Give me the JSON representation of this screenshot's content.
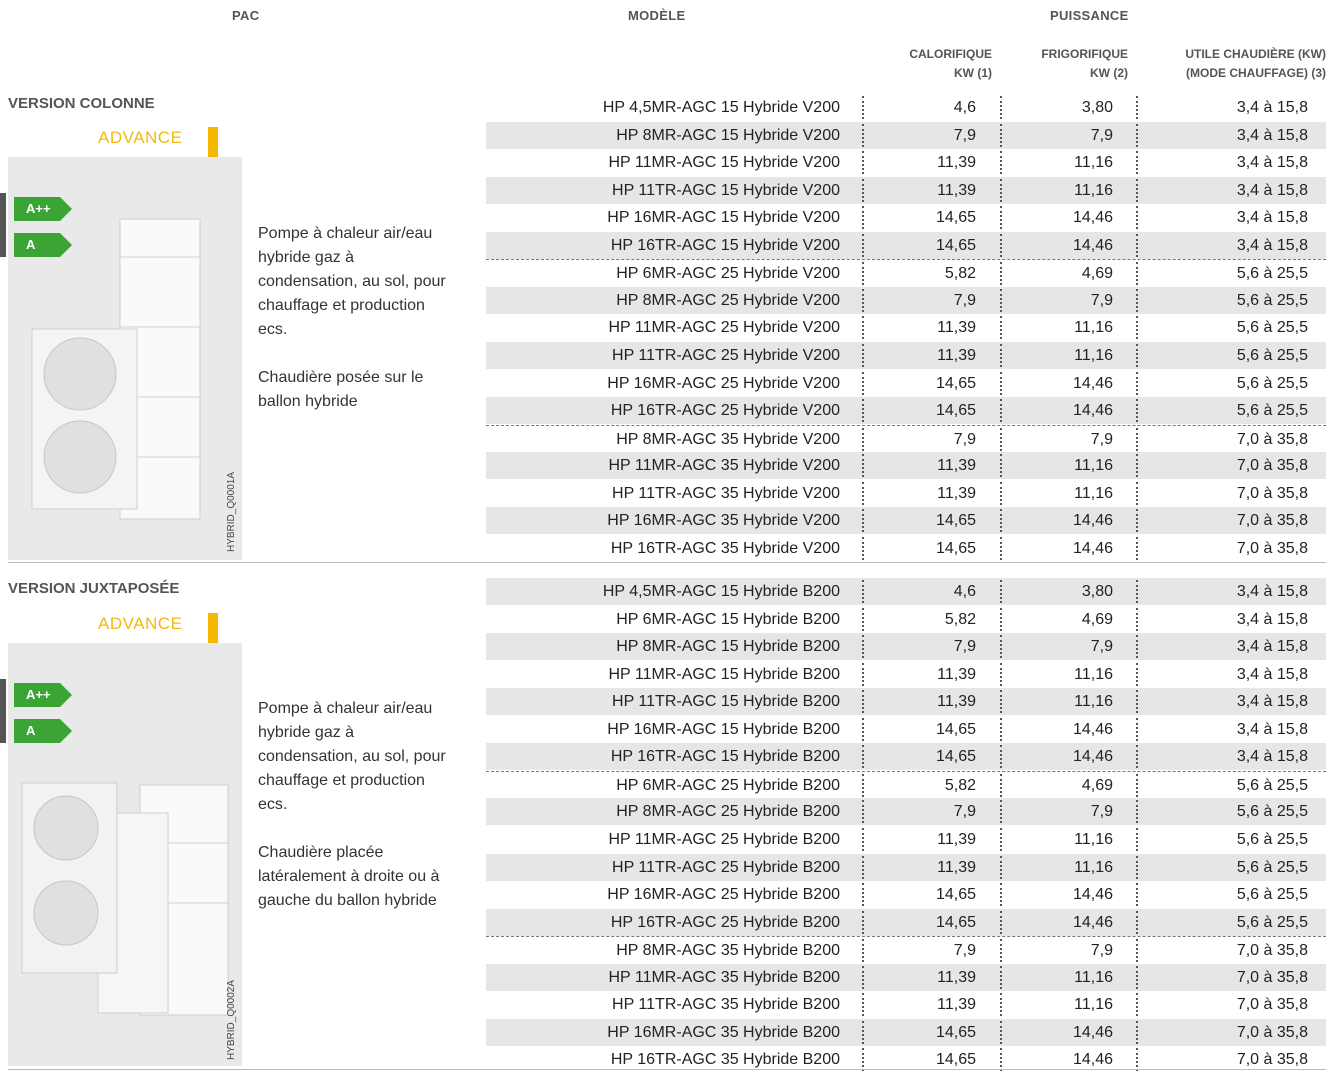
{
  "headers": {
    "pac": "PAC",
    "modele": "MODÈLE",
    "puissance": "PUISSANCE",
    "calorifique_l1": "CALORIFIQUE",
    "calorifique_l2": "KW (1)",
    "frigorifique_l1": "FRIGORIFIQUE",
    "frigorifique_l2": "KW (2)",
    "utile_l1": "UTILE CHAUDIÈRE (KW)",
    "utile_l2": "(MODE CHAUFFAGE) (3)"
  },
  "sections": [
    {
      "title": "VERSION COLONNE",
      "badge": "ADVANCE",
      "energy_classes": [
        "A++",
        "A"
      ],
      "photo_code": "HYBRID_Q0001A",
      "desc_1": "Pompe à chaleur air/eau hybride gaz à condensation, au sol, pour chauffage et production ecs.",
      "desc_2": "Chaudière posée sur le ballon hybride",
      "rows": [
        {
          "model": "HP 4,5MR-AGC 15 Hybride V200",
          "cal": "4,6",
          "frig": "3,80",
          "util": "3,4 à 15,8"
        },
        {
          "model": "HP 8MR-AGC 15 Hybride V200",
          "cal": "7,9",
          "frig": "7,9",
          "util": "3,4 à 15,8"
        },
        {
          "model": "HP 11MR-AGC 15 Hybride V200",
          "cal": "11,39",
          "frig": "11,16",
          "util": "3,4 à 15,8"
        },
        {
          "model": "HP 11TR-AGC 15 Hybride V200",
          "cal": "11,39",
          "frig": "11,16",
          "util": "3,4 à 15,8"
        },
        {
          "model": "HP 16MR-AGC 15 Hybride V200",
          "cal": "14,65",
          "frig": "14,46",
          "util": "3,4 à 15,8"
        },
        {
          "model": "HP 16TR-AGC 15 Hybride V200",
          "cal": "14,65",
          "frig": "14,46",
          "util": "3,4 à 15,8"
        },
        {
          "model": "HP 6MR-AGC 25 Hybride V200",
          "cal": "5,82",
          "frig": "4,69",
          "util": "5,6 à 25,5"
        },
        {
          "model": "HP 8MR-AGC 25 Hybride V200",
          "cal": "7,9",
          "frig": "7,9",
          "util": "5,6 à 25,5"
        },
        {
          "model": "HP 11MR-AGC 25 Hybride V200",
          "cal": "11,39",
          "frig": "11,16",
          "util": "5,6 à 25,5"
        },
        {
          "model": "HP 11TR-AGC 25 Hybride V200",
          "cal": "11,39",
          "frig": "11,16",
          "util": "5,6 à 25,5"
        },
        {
          "model": "HP 16MR-AGC 25 Hybride V200",
          "cal": "14,65",
          "frig": "14,46",
          "util": "5,6 à 25,5"
        },
        {
          "model": "HP 16TR-AGC 25 Hybride V200",
          "cal": "14,65",
          "frig": "14,46",
          "util": "5,6 à 25,5"
        },
        {
          "model": "HP 8MR-AGC 35 Hybride V200",
          "cal": "7,9",
          "frig": "7,9",
          "util": "7,0 à 35,8"
        },
        {
          "model": "HP 11MR-AGC 35 Hybride V200",
          "cal": "11,39",
          "frig": "11,16",
          "util": "7,0 à 35,8"
        },
        {
          "model": "HP 11TR-AGC 35 Hybride V200",
          "cal": "11,39",
          "frig": "11,16",
          "util": "7,0 à 35,8"
        },
        {
          "model": "HP 16MR-AGC 35 Hybride V200",
          "cal": "14,65",
          "frig": "14,46",
          "util": "7,0 à 35,8"
        },
        {
          "model": "HP 16TR-AGC 35 Hybride V200",
          "cal": "14,65",
          "frig": "14,46",
          "util": "7,0 à 35,8"
        }
      ]
    },
    {
      "title": "VERSION JUXTAPOSÉE",
      "badge": "ADVANCE",
      "energy_classes": [
        "A++",
        "A"
      ],
      "photo_code": "HYBRID_Q0002A",
      "desc_1": "Pompe à chaleur air/eau hybride gaz à condensation, au sol, pour chauffage et production ecs.",
      "desc_2": "Chaudière placée latéralement à droite ou à gauche du ballon hybride",
      "rows": [
        {
          "model": "HP 4,5MR-AGC 15 Hybride B200",
          "cal": "4,6",
          "frig": "3,80",
          "util": "3,4 à 15,8"
        },
        {
          "model": "HP 6MR-AGC 15 Hybride B200",
          "cal": "5,82",
          "frig": "4,69",
          "util": "3,4 à 15,8"
        },
        {
          "model": "HP 8MR-AGC 15 Hybride B200",
          "cal": "7,9",
          "frig": "7,9",
          "util": "3,4 à 15,8"
        },
        {
          "model": "HP 11MR-AGC 15 Hybride B200",
          "cal": "11,39",
          "frig": "11,16",
          "util": "3,4 à 15,8"
        },
        {
          "model": "HP 11TR-AGC 15 Hybride B200",
          "cal": "11,39",
          "frig": "11,16",
          "util": "3,4 à 15,8"
        },
        {
          "model": "HP 16MR-AGC 15 Hybride B200",
          "cal": "14,65",
          "frig": "14,46",
          "util": "3,4 à 15,8"
        },
        {
          "model": "HP 16TR-AGC 15 Hybride B200",
          "cal": "14,65",
          "frig": "14,46",
          "util": "3,4 à 15,8"
        },
        {
          "model": "HP 6MR-AGC 25 Hybride B200",
          "cal": "5,82",
          "frig": "4,69",
          "util": "5,6 à 25,5"
        },
        {
          "model": "HP 8MR-AGC 25 Hybride B200",
          "cal": "7,9",
          "frig": "7,9",
          "util": "5,6 à 25,5"
        },
        {
          "model": "HP 11MR-AGC 25 Hybride B200",
          "cal": "11,39",
          "frig": "11,16",
          "util": "5,6 à 25,5"
        },
        {
          "model": "HP 11TR-AGC 25 Hybride B200",
          "cal": "11,39",
          "frig": "11,16",
          "util": "5,6 à 25,5"
        },
        {
          "model": "HP 16MR-AGC 25 Hybride B200",
          "cal": "14,65",
          "frig": "14,46",
          "util": "5,6 à 25,5"
        },
        {
          "model": "HP 16TR-AGC 25 Hybride B200",
          "cal": "14,65",
          "frig": "14,46",
          "util": "5,6 à 25,5"
        },
        {
          "model": "HP 8MR-AGC 35 Hybride B200",
          "cal": "7,9",
          "frig": "7,9",
          "util": "7,0 à 35,8"
        },
        {
          "model": "HP 11MR-AGC 35 Hybride B200",
          "cal": "11,39",
          "frig": "11,16",
          "util": "7,0 à 35,8"
        },
        {
          "model": "HP 11TR-AGC 35 Hybride B200",
          "cal": "11,39",
          "frig": "11,16",
          "util": "7,0 à 35,8"
        },
        {
          "model": "HP 16MR-AGC 35 Hybride B200",
          "cal": "14,65",
          "frig": "14,46",
          "util": "7,0 à 35,8"
        },
        {
          "model": "HP 16TR-AGC 35 Hybride B200",
          "cal": "14,65",
          "frig": "14,46",
          "util": "7,0 à 35,8"
        }
      ]
    }
  ],
  "colors": {
    "accent": "#f5b800",
    "energy": "#3aa535",
    "row_shade": "#e6e6e6"
  }
}
